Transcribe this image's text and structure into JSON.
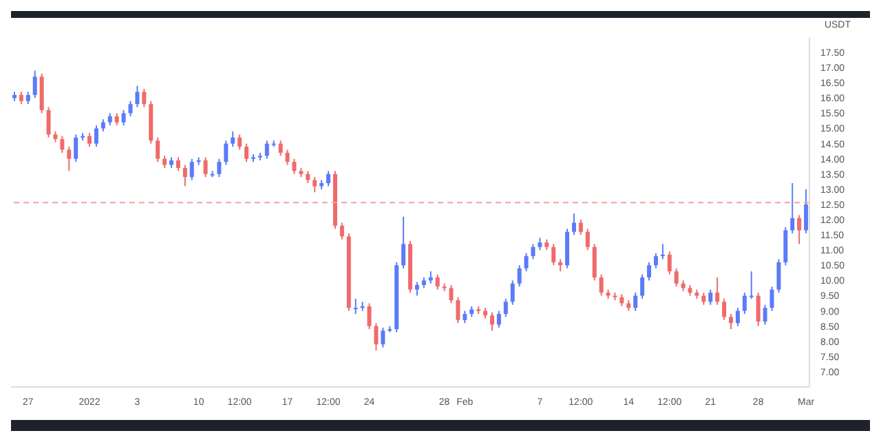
{
  "chart_data": {
    "type": "candlestick",
    "ylabel": "USDT",
    "categories": [
      null,
      null,
      "27",
      null,
      null,
      null,
      null,
      null,
      null,
      null,
      null,
      "2022",
      null,
      null,
      null,
      null,
      null,
      null,
      "3",
      null,
      null,
      null,
      null,
      null,
      null,
      null,
      null,
      "10",
      null,
      null,
      null,
      null,
      null,
      "12:00",
      null,
      null,
      null,
      null,
      null,
      null,
      "17",
      null,
      null,
      null,
      null,
      null,
      "12:00",
      null,
      null,
      null,
      null,
      null,
      "24",
      null,
      null,
      null,
      null,
      null,
      null,
      null,
      null,
      null,
      null,
      "28",
      null,
      null,
      "Feb",
      null,
      null,
      null,
      null,
      null,
      null,
      null,
      null,
      null,
      null,
      "7",
      null,
      null,
      null,
      null,
      null,
      "12:00",
      null,
      null,
      null,
      null,
      null,
      null,
      "14",
      null,
      null,
      null,
      null,
      null,
      "12:00",
      null,
      null,
      null,
      null,
      null,
      "21",
      null,
      null,
      null,
      null,
      null,
      null,
      "28",
      null,
      null,
      null,
      null,
      null,
      null,
      "Mar"
    ],
    "colors": [
      "#5b7cf7",
      "#ef6b6b",
      "#5b7cf7",
      "#5b7cf7",
      "#ef6b6b",
      "#ef6b6b",
      "#ef6b6b",
      "#ef6b6b",
      "#ef6b6b",
      "#5b7cf7",
      "#5b7cf7",
      "#ef6b6b",
      "#5b7cf7",
      "#5b7cf7",
      "#5b7cf7",
      "#ef6b6b",
      "#5b7cf7",
      "#5b7cf7",
      "#5b7cf7",
      "#ef6b6b",
      "#ef6b6b",
      "#ef6b6b",
      "#ef6b6b",
      "#5b7cf7",
      "#ef6b6b",
      "#ef6b6b",
      "#5b7cf7",
      "#5b7cf7",
      "#ef6b6b",
      "#5b7cf7",
      "#5b7cf7",
      "#5b7cf7",
      "#5b7cf7",
      "#ef6b6b",
      "#ef6b6b",
      "#5b7cf7",
      "#5b7cf7",
      "#5b7cf7",
      "#5b7cf7",
      "#ef6b6b",
      "#ef6b6b",
      "#ef6b6b",
      "#ef6b6b",
      "#ef6b6b",
      "#ef6b6b",
      "#5b7cf7",
      "#5b7cf7",
      "#ef6b6b",
      "#ef6b6b",
      "#ef6b6b",
      "#5b7cf7",
      "#5b7cf7",
      "#ef6b6b",
      "#ef6b6b",
      "#5b7cf7",
      "#5b7cf7",
      "#5b7cf7",
      "#5b7cf7",
      "#ef6b6b",
      "#5b7cf7",
      "#5b7cf7",
      "#5b7cf7",
      "#ef6b6b",
      "#ef6b6b",
      "#ef6b6b",
      "#ef6b6b",
      "#5b7cf7",
      "#5b7cf7",
      "#ef6b6b",
      "#ef6b6b",
      "#ef6b6b",
      "#5b7cf7",
      "#5b7cf7",
      "#5b7cf7",
      "#5b7cf7",
      "#5b7cf7",
      "#5b7cf7",
      "#5b7cf7",
      "#ef6b6b",
      "#ef6b6b",
      "#ef6b6b",
      "#5b7cf7",
      "#5b7cf7",
      "#ef6b6b",
      "#ef6b6b",
      "#ef6b6b",
      "#ef6b6b",
      "#ef6b6b",
      "#ef6b6b",
      "#ef6b6b",
      "#ef6b6b",
      "#5b7cf7",
      "#5b7cf7",
      "#5b7cf7",
      "#5b7cf7",
      "#5b7cf7",
      "#ef6b6b",
      "#ef6b6b",
      "#ef6b6b",
      "#ef6b6b",
      "#ef6b6b",
      "#ef6b6b",
      "#5b7cf7",
      "#ef6b6b",
      "#ef6b6b",
      "#ef6b6b",
      "#5b7cf7",
      "#5b7cf7",
      "#5b7cf7",
      "#ef6b6b",
      "#5b7cf7",
      "#5b7cf7",
      "#5b7cf7",
      "#5b7cf7",
      "#5b7cf7",
      "#ef6b6b",
      "#5b7cf7"
    ],
    "ohlc": [
      [
        16.0,
        16.2,
        15.9,
        16.1
      ],
      [
        16.1,
        16.2,
        15.8,
        15.9
      ],
      [
        15.9,
        16.2,
        15.8,
        16.1
      ],
      [
        16.1,
        16.9,
        16.0,
        16.7
      ],
      [
        16.7,
        16.8,
        15.5,
        15.6
      ],
      [
        15.6,
        15.7,
        14.7,
        14.8
      ],
      [
        14.8,
        14.9,
        14.55,
        14.65
      ],
      [
        14.65,
        14.75,
        14.2,
        14.3
      ],
      [
        14.3,
        14.4,
        13.6,
        14.0
      ],
      [
        14.0,
        14.8,
        13.9,
        14.7
      ],
      [
        14.7,
        14.85,
        14.6,
        14.75
      ],
      [
        14.75,
        14.85,
        14.4,
        14.5
      ],
      [
        14.5,
        15.1,
        14.4,
        15.0
      ],
      [
        15.0,
        15.3,
        14.9,
        15.2
      ],
      [
        15.2,
        15.5,
        15.1,
        15.4
      ],
      [
        15.4,
        15.5,
        15.1,
        15.2
      ],
      [
        15.2,
        15.6,
        15.1,
        15.5
      ],
      [
        15.5,
        15.9,
        15.4,
        15.8
      ],
      [
        15.8,
        16.4,
        15.7,
        16.2
      ],
      [
        16.2,
        16.3,
        15.7,
        15.8
      ],
      [
        15.8,
        15.9,
        14.5,
        14.6
      ],
      [
        14.6,
        14.7,
        13.9,
        14.0
      ],
      [
        14.0,
        14.1,
        13.7,
        13.8
      ],
      [
        13.8,
        14.05,
        13.7,
        13.95
      ],
      [
        13.95,
        14.05,
        13.6,
        13.7
      ],
      [
        13.7,
        13.8,
        13.1,
        13.4
      ],
      [
        13.4,
        14.0,
        13.3,
        13.9
      ],
      [
        13.9,
        14.05,
        13.8,
        13.95
      ],
      [
        13.95,
        14.05,
        13.4,
        13.5
      ],
      [
        13.5,
        13.6,
        13.4,
        13.5
      ],
      [
        13.5,
        14.0,
        13.4,
        13.9
      ],
      [
        13.9,
        14.6,
        13.8,
        14.5
      ],
      [
        14.5,
        14.9,
        14.4,
        14.7
      ],
      [
        14.7,
        14.8,
        14.3,
        14.4
      ],
      [
        14.4,
        14.5,
        13.9,
        14.0
      ],
      [
        14.0,
        14.15,
        13.9,
        14.05
      ],
      [
        14.05,
        14.2,
        13.95,
        14.1
      ],
      [
        14.1,
        14.6,
        14.0,
        14.5
      ],
      [
        14.5,
        14.6,
        14.4,
        14.5
      ],
      [
        14.5,
        14.6,
        14.1,
        14.2
      ],
      [
        14.2,
        14.3,
        13.8,
        13.9
      ],
      [
        13.9,
        14.0,
        13.5,
        13.6
      ],
      [
        13.6,
        13.7,
        13.4,
        13.5
      ],
      [
        13.5,
        13.6,
        13.2,
        13.3
      ],
      [
        13.3,
        13.4,
        12.9,
        13.1
      ],
      [
        13.1,
        13.3,
        13.0,
        13.2
      ],
      [
        13.2,
        13.6,
        13.1,
        13.5
      ],
      [
        13.5,
        13.6,
        11.7,
        11.8
      ],
      [
        11.8,
        11.9,
        11.35,
        11.45
      ],
      [
        11.45,
        11.55,
        9.0,
        9.1
      ],
      [
        9.1,
        9.4,
        8.9,
        9.1
      ],
      [
        9.1,
        9.3,
        9.0,
        9.15
      ],
      [
        9.15,
        9.25,
        8.4,
        8.5
      ],
      [
        8.5,
        8.6,
        7.7,
        7.9
      ],
      [
        7.9,
        8.45,
        7.8,
        8.35
      ],
      [
        8.35,
        8.5,
        8.3,
        8.4
      ],
      [
        8.4,
        10.6,
        8.3,
        10.5
      ],
      [
        10.5,
        12.1,
        10.4,
        11.2
      ],
      [
        11.2,
        11.3,
        9.6,
        9.7
      ],
      [
        9.7,
        9.95,
        9.5,
        9.85
      ],
      [
        9.85,
        10.1,
        9.75,
        10.0
      ],
      [
        10.0,
        10.3,
        9.9,
        10.1
      ],
      [
        10.1,
        10.2,
        9.7,
        9.8
      ],
      [
        9.8,
        9.9,
        9.65,
        9.75
      ],
      [
        9.75,
        9.85,
        9.25,
        9.35
      ],
      [
        9.35,
        9.45,
        8.6,
        8.7
      ],
      [
        8.7,
        9.0,
        8.6,
        8.9
      ],
      [
        8.9,
        9.15,
        8.8,
        9.05
      ],
      [
        9.05,
        9.15,
        8.9,
        9.0
      ],
      [
        9.0,
        9.1,
        8.75,
        8.85
      ],
      [
        8.85,
        8.95,
        8.35,
        8.55
      ],
      [
        8.55,
        9.0,
        8.45,
        8.9
      ],
      [
        8.9,
        9.4,
        8.8,
        9.3
      ],
      [
        9.3,
        10.0,
        9.2,
        9.9
      ],
      [
        9.9,
        10.5,
        9.8,
        10.4
      ],
      [
        10.4,
        10.9,
        10.3,
        10.8
      ],
      [
        10.8,
        11.2,
        10.7,
        11.1
      ],
      [
        11.1,
        11.4,
        11.0,
        11.25
      ],
      [
        11.25,
        11.35,
        11.0,
        11.1
      ],
      [
        11.1,
        11.2,
        10.5,
        10.6
      ],
      [
        10.6,
        10.7,
        10.3,
        10.5
      ],
      [
        10.5,
        11.7,
        10.4,
        11.6
      ],
      [
        11.6,
        12.2,
        11.5,
        11.9
      ],
      [
        11.9,
        12.0,
        11.5,
        11.6
      ],
      [
        11.6,
        11.7,
        11.0,
        11.1
      ],
      [
        11.1,
        11.2,
        10.0,
        10.1
      ],
      [
        10.1,
        10.2,
        9.5,
        9.6
      ],
      [
        9.6,
        9.7,
        9.4,
        9.5
      ],
      [
        9.5,
        9.6,
        9.35,
        9.45
      ],
      [
        9.45,
        9.55,
        9.15,
        9.25
      ],
      [
        9.25,
        9.35,
        9.0,
        9.1
      ],
      [
        9.1,
        9.6,
        9.0,
        9.5
      ],
      [
        9.5,
        10.2,
        9.4,
        10.1
      ],
      [
        10.1,
        10.6,
        10.0,
        10.5
      ],
      [
        10.5,
        10.9,
        10.4,
        10.8
      ],
      [
        10.8,
        11.2,
        10.7,
        10.85
      ],
      [
        10.85,
        10.95,
        10.2,
        10.3
      ],
      [
        10.3,
        10.4,
        9.8,
        9.9
      ],
      [
        9.9,
        10.0,
        9.65,
        9.75
      ],
      [
        9.75,
        9.85,
        9.5,
        9.6
      ],
      [
        9.6,
        9.7,
        9.4,
        9.5
      ],
      [
        9.5,
        9.6,
        9.2,
        9.3
      ],
      [
        9.3,
        9.7,
        9.2,
        9.6
      ],
      [
        9.6,
        10.1,
        9.2,
        9.3
      ],
      [
        9.3,
        9.4,
        8.7,
        8.8
      ],
      [
        8.8,
        8.9,
        8.4,
        8.6
      ],
      [
        8.6,
        9.1,
        8.5,
        9.0
      ],
      [
        9.0,
        9.6,
        8.9,
        9.5
      ],
      [
        9.5,
        10.3,
        9.4,
        9.5
      ],
      [
        9.5,
        9.6,
        8.5,
        8.65
      ],
      [
        8.65,
        9.2,
        8.55,
        9.1
      ],
      [
        9.1,
        9.8,
        9.0,
        9.7
      ],
      [
        9.7,
        10.7,
        9.6,
        10.6
      ],
      [
        10.6,
        11.75,
        10.5,
        11.65
      ],
      [
        11.65,
        13.2,
        11.55,
        12.05
      ],
      [
        12.05,
        12.15,
        11.2,
        11.65
      ],
      [
        11.65,
        13.0,
        11.55,
        12.5
      ]
    ],
    "ylim": [
      6.5,
      18.0
    ],
    "yticks": [
      {
        "value": 7,
        "label": "7.00"
      },
      {
        "value": 7.5,
        "label": "7.50"
      },
      {
        "value": 8,
        "label": "8.00"
      },
      {
        "value": 8.5,
        "label": "8.50"
      },
      {
        "value": 9,
        "label": "9.00"
      },
      {
        "value": 9.5,
        "label": "9.50"
      },
      {
        "value": 10,
        "label": "10.00"
      },
      {
        "value": 10.5,
        "label": "10.50"
      },
      {
        "value": 11,
        "label": "11.00"
      },
      {
        "value": 11.5,
        "label": "11.50"
      },
      {
        "value": 12,
        "label": "12.00"
      },
      {
        "value": 12.5,
        "label": "12.50"
      },
      {
        "value": 13,
        "label": "13.00"
      },
      {
        "value": 13.5,
        "label": "13.50"
      },
      {
        "value": 14,
        "label": "14.00"
      },
      {
        "value": 14.5,
        "label": "14.50"
      },
      {
        "value": 15,
        "label": "15.00"
      },
      {
        "value": 15.5,
        "label": "15.50"
      },
      {
        "value": 16,
        "label": "16.00"
      },
      {
        "value": 16.5,
        "label": "16.50"
      },
      {
        "value": 17,
        "label": "17.00"
      },
      {
        "value": 17.5,
        "label": "17.50"
      }
    ],
    "ref_lines": [
      {
        "axis": "y",
        "value": 12.56,
        "label": null,
        "color": "#f4a0a0",
        "line_style": "dashed"
      }
    ],
    "grid": false,
    "legend": false
  }
}
